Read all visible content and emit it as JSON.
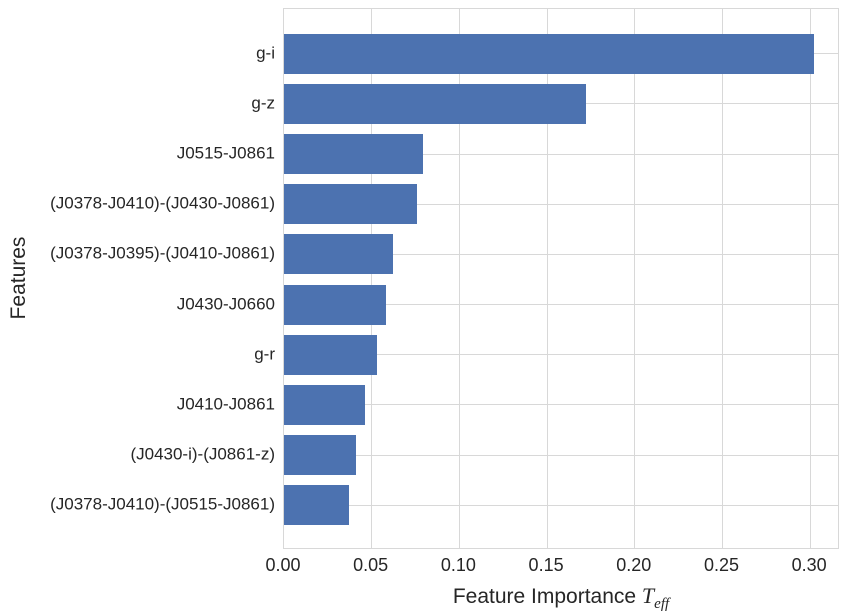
{
  "figure": {
    "background_color": "#ffffff",
    "bar_color": "#4c72b0",
    "grid_color": "#d8d8d8",
    "text_color": "#262626"
  },
  "chart_data": {
    "type": "bar",
    "orientation": "horizontal",
    "title": "",
    "xlabel_text": "Feature Importance ",
    "xlabel_symbol": "T",
    "xlabel_subscript": "eff",
    "ylabel": "Features",
    "categories": [
      "g-i",
      "g-z",
      "J0515-J0861",
      "(J0378-J0410)-(J0430-J0861)",
      "(J0378-J0395)-(J0410-J0861)",
      "J0430-J0660",
      "g-r",
      "J0410-J0861",
      "(J0430-i)-(J0861-z)",
      "(J0378-J0410)-(J0515-J0861)"
    ],
    "values": [
      0.302,
      0.172,
      0.079,
      0.076,
      0.062,
      0.058,
      0.053,
      0.046,
      0.041,
      0.037
    ],
    "xlim": [
      0,
      0.317
    ],
    "xticks": [
      0.0,
      0.05,
      0.1,
      0.15,
      0.2,
      0.25,
      0.3
    ],
    "xtick_labels": [
      "0.00",
      "0.05",
      "0.10",
      "0.15",
      "0.20",
      "0.25",
      "0.30"
    ],
    "grid": true,
    "legend": null
  }
}
